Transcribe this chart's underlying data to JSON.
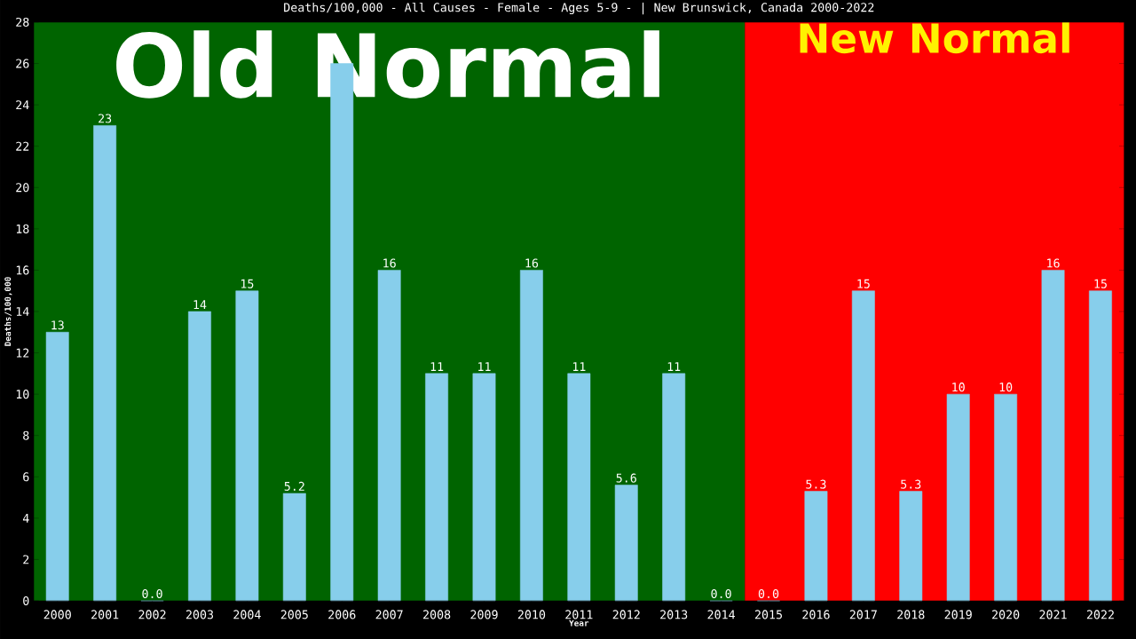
{
  "chart_data": {
    "type": "bar",
    "title": "Deaths/100,000 - All Causes - Female - Ages 5-9 -  | New Brunswick, Canada 2000-2022",
    "xlabel": "Year",
    "ylabel": "Deaths/100,000",
    "categories": [
      "2000",
      "2001",
      "2002",
      "2003",
      "2004",
      "2005",
      "2006",
      "2007",
      "2008",
      "2009",
      "2010",
      "2011",
      "2012",
      "2013",
      "2014",
      "2015",
      "2016",
      "2017",
      "2018",
      "2019",
      "2020",
      "2021",
      "2022"
    ],
    "values": [
      13,
      23,
      0,
      14,
      15,
      5.2,
      26,
      16,
      11,
      11,
      16,
      11,
      5.6,
      11,
      0,
      0,
      5.3,
      15,
      5.3,
      10,
      10,
      16,
      15
    ],
    "value_labels": [
      "13",
      "23",
      "0.0",
      "14",
      "15",
      "5.2",
      null,
      "16",
      "11",
      "11",
      "16",
      "11",
      "5.6",
      "11",
      "0.0",
      "0.0",
      "5.3",
      "15",
      "5.3",
      "10",
      "10",
      "16",
      "15"
    ],
    "color": "#87ceeb",
    "ylim": [
      0,
      28
    ],
    "yticks": [
      0,
      2,
      4,
      6,
      8,
      10,
      12,
      14,
      16,
      18,
      20,
      22,
      24,
      26,
      28
    ],
    "grid": false,
    "bands": [
      {
        "axis": "x",
        "from": "2000",
        "to": "2014",
        "label": "Old Normal",
        "color": "#006400"
      },
      {
        "axis": "x",
        "from": "2015",
        "to": "2022",
        "label": "New Normal",
        "color": "#ff0000"
      }
    ]
  }
}
